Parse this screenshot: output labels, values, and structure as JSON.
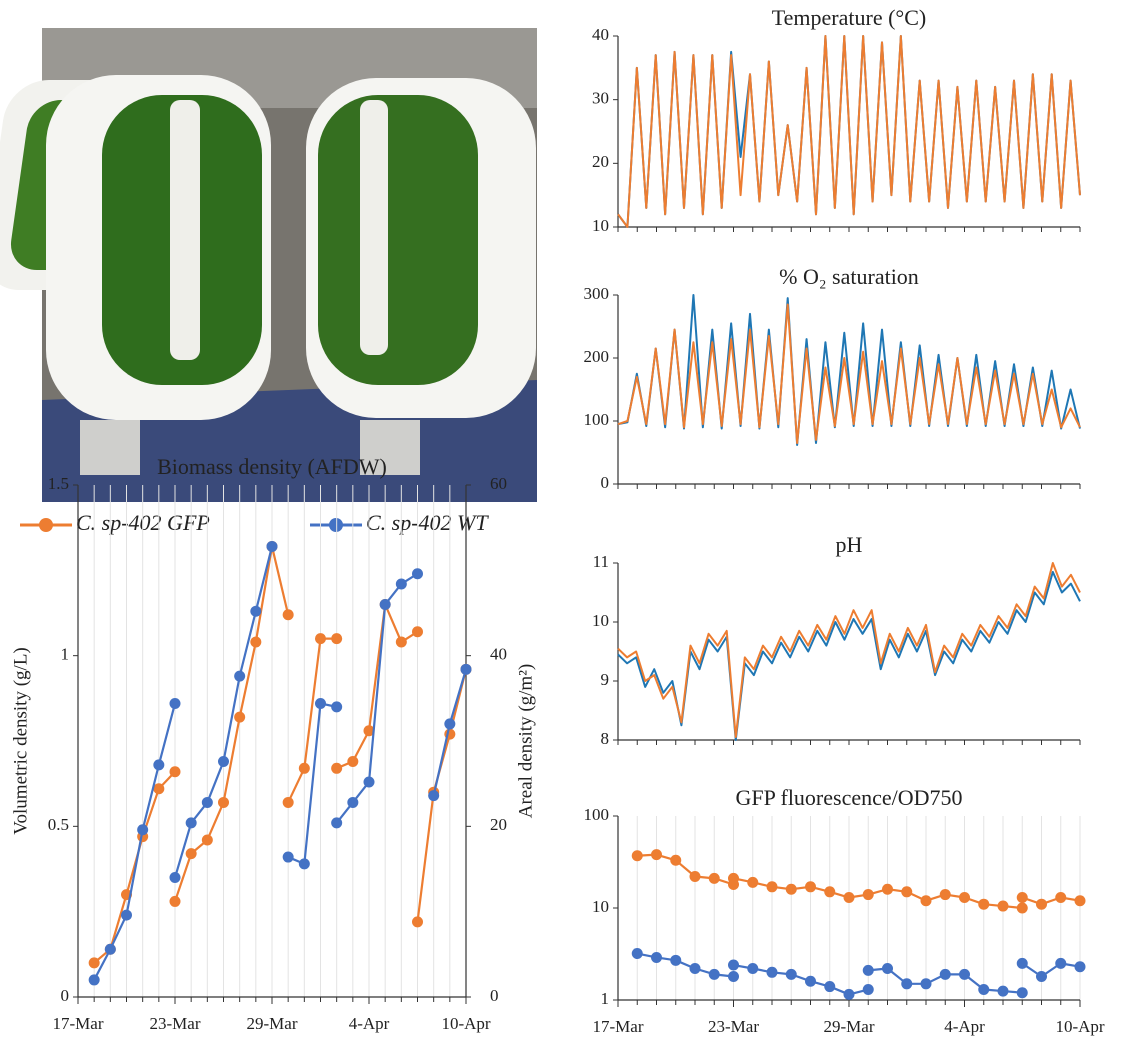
{
  "chart_data": [
    {
      "type": "line",
      "title": "Biomass density (AFDW)",
      "ylabel": "Volumetric density (g/L)",
      "y2label": "Areal density (g/m²)",
      "xlim": [
        "17-Mar",
        "10-Apr"
      ],
      "xticks": [
        "17-Mar",
        "23-Mar",
        "29-Mar",
        "4-Apr",
        "10-Apr"
      ],
      "ylim": [
        0,
        1.5
      ],
      "yticks": [
        0,
        0.5,
        1,
        1.5
      ],
      "y2lim": [
        0,
        60
      ],
      "y2ticks": [
        0,
        20,
        40,
        60
      ],
      "vgrid": true,
      "markers": true,
      "legend": "above",
      "series": [
        {
          "name": "C. sp-402 GFP",
          "color": "#ed7d31",
          "x": [
            "18-Mar",
            "19-Mar",
            "20-Mar",
            "21-Mar",
            "22-Mar",
            "23-Mar",
            null,
            "23-Mar",
            "24-Mar",
            "25-Mar",
            "26-Mar",
            "27-Mar",
            "28-Mar",
            "29-Mar",
            "30-Mar",
            null,
            "30-Mar",
            "31-Mar",
            "1-Apr",
            "2-Apr",
            null,
            "2-Apr",
            "3-Apr",
            "4-Apr",
            "5-Apr",
            "6-Apr",
            "7-Apr",
            null,
            "7-Apr",
            "8-Apr",
            "9-Apr",
            "10-Apr"
          ],
          "values": [
            0.1,
            0.14,
            0.3,
            0.47,
            0.61,
            0.66,
            null,
            0.28,
            0.42,
            0.46,
            0.57,
            0.82,
            1.04,
            1.32,
            1.12,
            null,
            0.57,
            0.67,
            1.05,
            1.05,
            null,
            0.67,
            0.69,
            0.78,
            1.15,
            1.04,
            1.07,
            null,
            0.22,
            0.6,
            0.77,
            0.96
          ]
        },
        {
          "name": "C. sp-402 WT",
          "color": "#4472c4",
          "x": [
            "18-Mar",
            "19-Mar",
            "20-Mar",
            "21-Mar",
            "22-Mar",
            "23-Mar",
            null,
            "23-Mar",
            "24-Mar",
            "25-Mar",
            "26-Mar",
            "27-Mar",
            "28-Mar",
            "29-Mar",
            null,
            "30-Mar",
            "31-Mar",
            "1-Apr",
            "2-Apr",
            null,
            "2-Apr",
            "3-Apr",
            "4-Apr",
            "5-Apr",
            "6-Apr",
            "7-Apr",
            null,
            "8-Apr",
            "9-Apr",
            "10-Apr"
          ],
          "values": [
            0.05,
            0.14,
            0.24,
            0.49,
            0.68,
            0.86,
            null,
            0.35,
            0.51,
            0.57,
            0.69,
            0.94,
            1.13,
            1.32,
            null,
            0.41,
            0.39,
            0.86,
            0.85,
            null,
            0.51,
            0.57,
            0.63,
            1.15,
            1.21,
            1.24,
            null,
            0.59,
            0.8,
            0.96
          ]
        }
      ]
    },
    {
      "type": "line",
      "title": "Temperature (°C)",
      "xlim": [
        "17-Mar",
        "10-Apr"
      ],
      "ylim": [
        10,
        40
      ],
      "yticks": [
        10,
        20,
        30,
        40
      ],
      "series": [
        {
          "color": "#1f77b4",
          "values": [
            12,
            10,
            35,
            13,
            37,
            12,
            37.5,
            13,
            37,
            12,
            37,
            13,
            37.5,
            21,
            34,
            14,
            36,
            15,
            26,
            14,
            35,
            12,
            40,
            13,
            40,
            12,
            40,
            14,
            39,
            15,
            40,
            14,
            33,
            14,
            33,
            13,
            32,
            14,
            33,
            14,
            32,
            14,
            33,
            13,
            34,
            14,
            34,
            13,
            33,
            15
          ]
        },
        {
          "color": "#ed7d31",
          "values": [
            12,
            10,
            35,
            13,
            37,
            12,
            37.5,
            13,
            37,
            12,
            37,
            13,
            37,
            15,
            34,
            14,
            36,
            15,
            26,
            14,
            35,
            12,
            40,
            13,
            40,
            12,
            40,
            14,
            39,
            15,
            40,
            14,
            33,
            14,
            33,
            13,
            32,
            14,
            33,
            14,
            32,
            14,
            33,
            13,
            34,
            14,
            34,
            13,
            33,
            15
          ]
        }
      ]
    },
    {
      "type": "line",
      "title": "% O₂ saturation",
      "xlim": [
        "17-Mar",
        "10-Apr"
      ],
      "ylim": [
        0,
        300
      ],
      "yticks": [
        0,
        100,
        200,
        300
      ],
      "series": [
        {
          "color": "#1f77b4",
          "values": [
            95,
            98,
            175,
            92,
            215,
            90,
            245,
            88,
            300,
            90,
            245,
            88,
            255,
            92,
            270,
            88,
            245,
            90,
            295,
            62,
            230,
            65,
            225,
            90,
            240,
            92,
            255,
            92,
            245,
            92,
            225,
            92,
            220,
            92,
            205,
            92,
            200,
            92,
            205,
            92,
            195,
            92,
            190,
            92,
            185,
            92,
            180,
            88,
            150,
            88
          ]
        },
        {
          "color": "#ed7d31",
          "values": [
            95,
            100,
            170,
            95,
            215,
            95,
            245,
            90,
            225,
            95,
            225,
            92,
            230,
            95,
            245,
            90,
            235,
            95,
            285,
            65,
            215,
            70,
            185,
            92,
            200,
            95,
            210,
            95,
            195,
            95,
            215,
            95,
            200,
            95,
            190,
            95,
            200,
            95,
            185,
            95,
            180,
            95,
            175,
            95,
            175,
            95,
            150,
            90,
            120,
            90
          ]
        }
      ]
    },
    {
      "type": "line",
      "title": "pH",
      "xlim": [
        "17-Mar",
        "10-Apr"
      ],
      "ylim": [
        8,
        11
      ],
      "yticks": [
        8,
        9,
        10,
        11
      ],
      "series": [
        {
          "color": "#1f77b4",
          "values": [
            9.45,
            9.3,
            9.4,
            8.9,
            9.2,
            8.8,
            9.0,
            8.25,
            9.5,
            9.2,
            9.7,
            9.5,
            9.75,
            8.0,
            9.3,
            9.1,
            9.5,
            9.3,
            9.65,
            9.4,
            9.75,
            9.5,
            9.85,
            9.6,
            10.0,
            9.7,
            10.05,
            9.8,
            10.05,
            9.2,
            9.7,
            9.4,
            9.8,
            9.5,
            9.85,
            9.1,
            9.5,
            9.3,
            9.7,
            9.5,
            9.85,
            9.65,
            10.0,
            9.8,
            10.2,
            10.0,
            10.5,
            10.3,
            10.85,
            10.5,
            10.65,
            10.35
          ]
        },
        {
          "color": "#ed7d31",
          "values": [
            9.55,
            9.4,
            9.5,
            9.0,
            9.1,
            8.7,
            8.9,
            8.3,
            9.6,
            9.3,
            9.8,
            9.6,
            9.85,
            8.05,
            9.4,
            9.2,
            9.6,
            9.4,
            9.75,
            9.5,
            9.85,
            9.6,
            9.95,
            9.7,
            10.1,
            9.8,
            10.2,
            9.9,
            10.2,
            9.3,
            9.8,
            9.5,
            9.9,
            9.6,
            9.95,
            9.15,
            9.6,
            9.4,
            9.8,
            9.6,
            9.95,
            9.75,
            10.1,
            9.9,
            10.3,
            10.1,
            10.6,
            10.4,
            11.0,
            10.6,
            10.8,
            10.5
          ]
        }
      ]
    },
    {
      "type": "line",
      "title": "GFP fluorescence/OD750",
      "xlim": [
        "17-Mar",
        "10-Apr"
      ],
      "xticks": [
        "17-Mar",
        "23-Mar",
        "29-Mar",
        "4-Apr",
        "10-Apr"
      ],
      "ylim": [
        1,
        100
      ],
      "yticks": [
        1,
        10,
        100
      ],
      "log": true,
      "vgrid": true,
      "markers": true,
      "series": [
        {
          "color": "#ed7d31",
          "x": [
            "18-Mar",
            "19-Mar",
            "20-Mar",
            "21-Mar",
            "22-Mar",
            "23-Mar",
            "23-Mar",
            "24-Mar",
            "25-Mar",
            "26-Mar",
            "27-Mar",
            "28-Mar",
            "29-Mar",
            "30-Mar",
            "31-Mar",
            "1-Apr",
            "2-Apr",
            "3-Apr",
            "4-Apr",
            "5-Apr",
            "6-Apr",
            "7-Apr",
            "7-Apr",
            "8-Apr",
            "9-Apr",
            "10-Apr"
          ],
          "values": [
            37,
            38,
            33,
            22,
            21,
            18,
            21,
            19,
            17,
            16,
            17,
            15,
            13,
            14,
            16,
            15,
            12,
            14,
            13,
            11,
            10.5,
            10,
            13,
            11,
            13,
            12
          ]
        },
        {
          "color": "#4472c4",
          "x": [
            "18-Mar",
            "19-Mar",
            "20-Mar",
            "21-Mar",
            "22-Mar",
            "23-Mar",
            null,
            "23-Mar",
            "24-Mar",
            "25-Mar",
            "26-Mar",
            "27-Mar",
            "28-Mar",
            "29-Mar",
            "30-Mar",
            null,
            "30-Mar",
            "31-Mar",
            "1-Apr",
            "2-Apr",
            "3-Apr",
            "4-Apr",
            "5-Apr",
            "6-Apr",
            "7-Apr",
            null,
            "7-Apr",
            "8-Apr",
            "9-Apr",
            "10-Apr"
          ],
          "values": [
            3.2,
            2.9,
            2.7,
            2.2,
            1.9,
            1.8,
            null,
            2.4,
            2.2,
            2.0,
            1.9,
            1.6,
            1.4,
            1.15,
            1.3,
            null,
            2.1,
            2.2,
            1.5,
            1.5,
            1.9,
            1.9,
            1.3,
            1.25,
            1.2,
            null,
            2.5,
            1.8,
            2.5,
            2.3
          ]
        }
      ]
    }
  ]
}
